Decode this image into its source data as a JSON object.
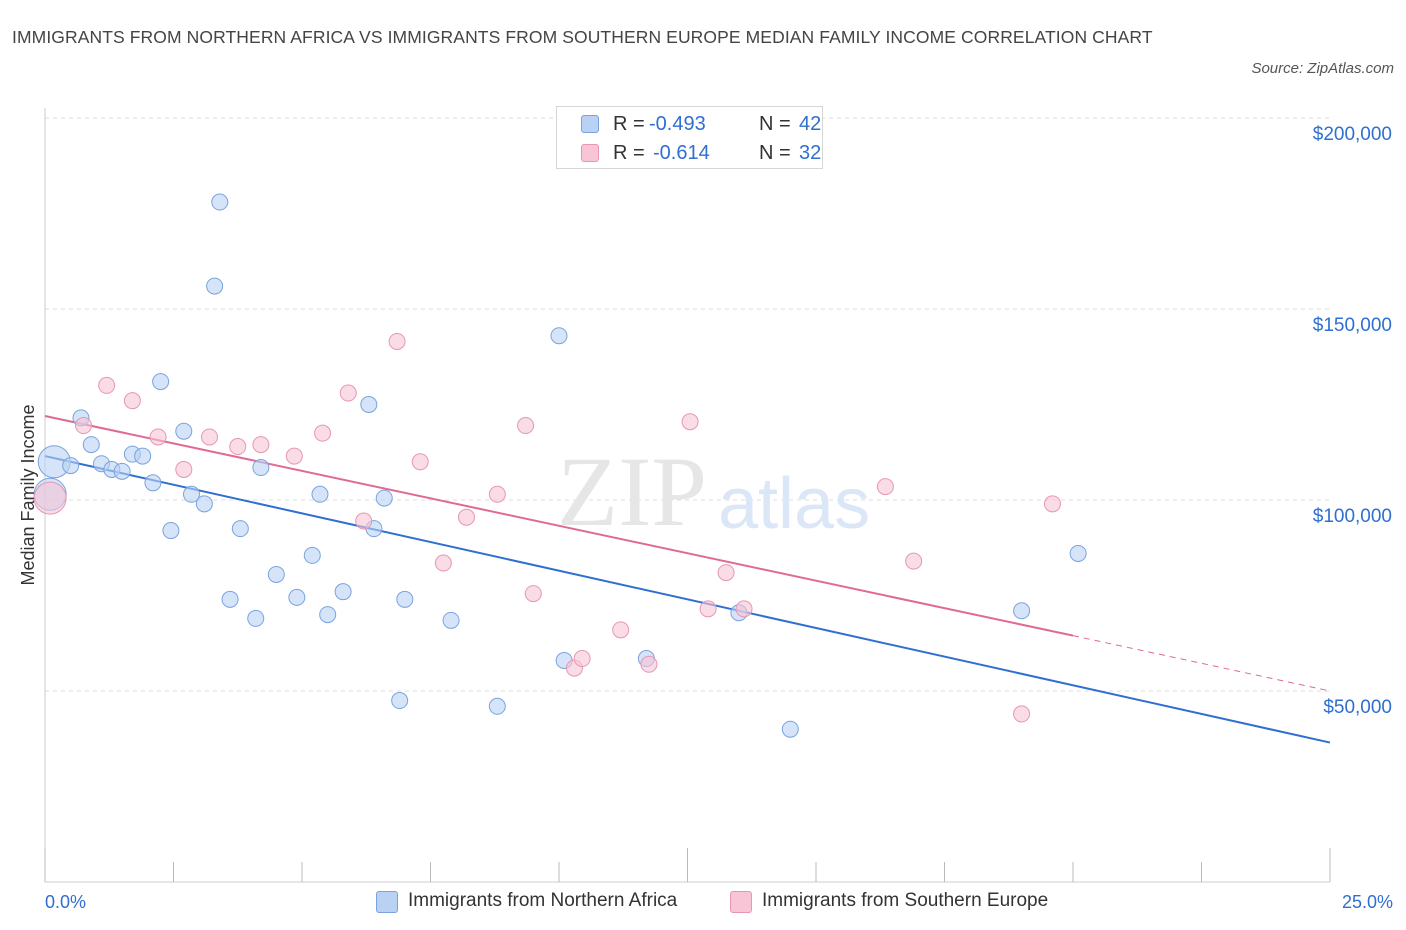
{
  "title": "IMMIGRANTS FROM NORTHERN AFRICA VS IMMIGRANTS FROM SOUTHERN EUROPE MEDIAN FAMILY INCOME CORRELATION CHART",
  "source": "Source: ZipAtlas.com",
  "watermark": {
    "zip": "ZIP",
    "atlas": "atlas"
  },
  "legend": {
    "r_label": "R =",
    "n_label": "N =",
    "rows": [
      {
        "r": "-0.493",
        "n": "42"
      },
      {
        "r": "-0.614",
        "n": "32"
      }
    ]
  },
  "colors": {
    "blue_fill": "#b9d2f3",
    "blue_stroke": "#7aa3dd",
    "blue_line": "#2f6fd0",
    "pink_fill": "#f7c5d5",
    "pink_stroke": "#e896b2",
    "pink_line": "#e06a92",
    "value_text": "#2f6fd0",
    "grid": "#dddddd"
  },
  "chart_data": {
    "type": "scatter",
    "title": "IMMIGRANTS FROM NORTHERN AFRICA VS IMMIGRANTS FROM SOUTHERN EUROPE MEDIAN FAMILY INCOME CORRELATION CHART",
    "xlabel": "",
    "ylabel": "Median Family Income",
    "xlim": [
      0,
      25
    ],
    "ylim": [
      0,
      200000
    ],
    "x_tick_labels": [
      "0.0%",
      "25.0%"
    ],
    "y_ticks": [
      50000,
      100000,
      150000,
      200000
    ],
    "y_tick_labels": [
      "$50,000",
      "$100,000",
      "$150,000",
      "$200,000"
    ],
    "grid": true,
    "legend_position": "top-center and bottom",
    "series": [
      {
        "name": "Immigrants from Northern Africa",
        "color": "#7aa3dd",
        "r": -0.493,
        "n": 42,
        "trend": {
          "x": [
            0,
            25
          ],
          "y": [
            111500,
            36500
          ]
        },
        "points": [
          {
            "x": 0.18,
            "y": 110000,
            "size": "large"
          },
          {
            "x": 0.1,
            "y": 101500,
            "size": "large"
          },
          {
            "x": 0.5,
            "y": 109000
          },
          {
            "x": 0.7,
            "y": 121500
          },
          {
            "x": 0.9,
            "y": 114500
          },
          {
            "x": 1.1,
            "y": 109500
          },
          {
            "x": 1.3,
            "y": 108000
          },
          {
            "x": 1.5,
            "y": 107500
          },
          {
            "x": 1.7,
            "y": 112000
          },
          {
            "x": 1.9,
            "y": 111500
          },
          {
            "x": 2.1,
            "y": 104500
          },
          {
            "x": 2.25,
            "y": 131000
          },
          {
            "x": 2.45,
            "y": 92000
          },
          {
            "x": 2.7,
            "y": 118000
          },
          {
            "x": 2.85,
            "y": 101500
          },
          {
            "x": 3.1,
            "y": 99000
          },
          {
            "x": 3.3,
            "y": 156000
          },
          {
            "x": 3.4,
            "y": 178000
          },
          {
            "x": 3.6,
            "y": 74000
          },
          {
            "x": 3.8,
            "y": 92500
          },
          {
            "x": 4.1,
            "y": 69000
          },
          {
            "x": 4.2,
            "y": 108500
          },
          {
            "x": 4.5,
            "y": 80500
          },
          {
            "x": 4.9,
            "y": 74500
          },
          {
            "x": 5.2,
            "y": 85500
          },
          {
            "x": 5.35,
            "y": 101500
          },
          {
            "x": 5.5,
            "y": 70000
          },
          {
            "x": 5.8,
            "y": 76000
          },
          {
            "x": 6.3,
            "y": 125000
          },
          {
            "x": 6.4,
            "y": 92500
          },
          {
            "x": 6.6,
            "y": 100500
          },
          {
            "x": 6.9,
            "y": 47500
          },
          {
            "x": 7.0,
            "y": 74000
          },
          {
            "x": 7.9,
            "y": 68500
          },
          {
            "x": 8.8,
            "y": 46000
          },
          {
            "x": 10.0,
            "y": 143000
          },
          {
            "x": 10.1,
            "y": 58000
          },
          {
            "x": 11.7,
            "y": 58500
          },
          {
            "x": 13.5,
            "y": 70500
          },
          {
            "x": 14.5,
            "y": 40000
          },
          {
            "x": 19.0,
            "y": 71000
          },
          {
            "x": 20.1,
            "y": 86000
          }
        ]
      },
      {
        "name": "Immigrants from Southern Europe",
        "color": "#e896b2",
        "r": -0.614,
        "n": 32,
        "trend": {
          "x": [
            0,
            20.0
          ],
          "y": [
            122000,
            64500
          ],
          "dashed_to": {
            "x": 25,
            "y": 50000
          }
        },
        "points": [
          {
            "x": 0.1,
            "y": 100500,
            "size": "large"
          },
          {
            "x": 0.75,
            "y": 119500
          },
          {
            "x": 1.2,
            "y": 130000
          },
          {
            "x": 1.7,
            "y": 126000
          },
          {
            "x": 2.2,
            "y": 116500
          },
          {
            "x": 2.7,
            "y": 108000
          },
          {
            "x": 3.2,
            "y": 116500
          },
          {
            "x": 3.75,
            "y": 114000
          },
          {
            "x": 4.2,
            "y": 114500
          },
          {
            "x": 4.85,
            "y": 111500
          },
          {
            "x": 5.4,
            "y": 117500
          },
          {
            "x": 5.9,
            "y": 128000
          },
          {
            "x": 6.2,
            "y": 94500
          },
          {
            "x": 6.85,
            "y": 141500
          },
          {
            "x": 7.3,
            "y": 110000
          },
          {
            "x": 7.75,
            "y": 83500
          },
          {
            "x": 8.2,
            "y": 95500
          },
          {
            "x": 8.8,
            "y": 101500
          },
          {
            "x": 9.35,
            "y": 119500
          },
          {
            "x": 9.5,
            "y": 75500
          },
          {
            "x": 10.3,
            "y": 56000
          },
          {
            "x": 10.45,
            "y": 58500
          },
          {
            "x": 11.2,
            "y": 66000
          },
          {
            "x": 11.75,
            "y": 57000
          },
          {
            "x": 12.55,
            "y": 120500
          },
          {
            "x": 12.9,
            "y": 71500
          },
          {
            "x": 13.25,
            "y": 81000
          },
          {
            "x": 13.6,
            "y": 71500
          },
          {
            "x": 16.35,
            "y": 103500
          },
          {
            "x": 16.9,
            "y": 84000
          },
          {
            "x": 19.0,
            "y": 44000
          },
          {
            "x": 19.6,
            "y": 99000
          }
        ]
      }
    ]
  }
}
